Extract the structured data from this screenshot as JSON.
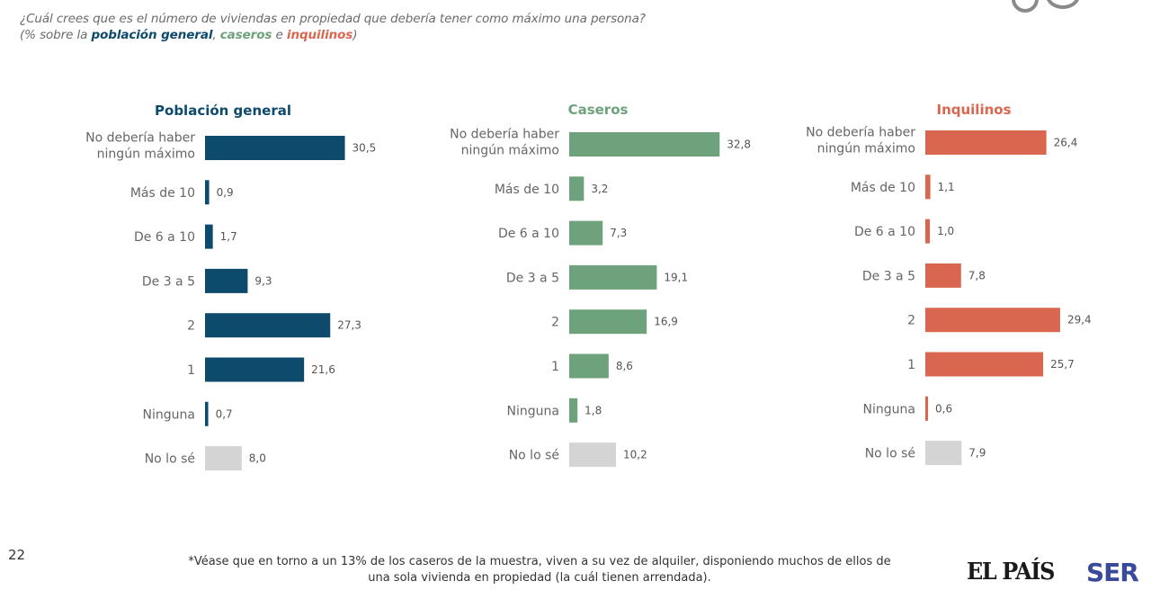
{
  "question": {
    "line1": "¿Cuál crees que es el número de viviendas en propiedad que debería tener como máximo una persona?",
    "line2_prefix": "(% sobre la ",
    "line2_gen": "población general",
    "line2_sep1": ", ",
    "line2_cas": "caseros",
    "line2_sep2": " e ",
    "line2_inq": "inquilinos",
    "line2_suffix": ")"
  },
  "colors": {
    "general": "#0d4a6b",
    "caseros": "#6ea27c",
    "inquilinos": "#d9664f",
    "no_lo_se": "#d4d4d4"
  },
  "chart_data": [
    {
      "type": "bar",
      "orientation": "horizontal",
      "title": "Población general",
      "color": "#0d4a6b",
      "categories": [
        "No debería haber ningún máximo",
        "Más de 10",
        "De 6 a 10",
        "De 3 a 5",
        "2",
        "1",
        "Ninguna",
        "No lo sé"
      ],
      "category_lines": [
        [
          "No debería haber",
          "ningún máximo"
        ],
        [
          "Más de 10"
        ],
        [
          "De 6 a 10"
        ],
        [
          "De 3 a 5"
        ],
        [
          "2"
        ],
        [
          "1"
        ],
        [
          "Ninguna"
        ],
        [
          "No lo sé"
        ]
      ],
      "values": [
        30.5,
        0.9,
        1.7,
        9.3,
        27.3,
        21.6,
        0.7,
        8.0
      ],
      "value_labels": [
        "30,5",
        "0,9",
        "1,7",
        "9,3",
        "27,3",
        "21,6",
        "0,7",
        "8,0"
      ],
      "xlabel": "",
      "ylabel": "",
      "unit": "%",
      "grid": false
    },
    {
      "type": "bar",
      "orientation": "horizontal",
      "title": "Caseros",
      "color": "#6ea27c",
      "categories": [
        "No debería haber ningún máximo",
        "Más de 10",
        "De 6 a 10",
        "De 3 a 5",
        "2",
        "1",
        "Ninguna",
        "No lo sé"
      ],
      "category_lines": [
        [
          "No debería haber",
          "ningún máximo"
        ],
        [
          "Más de 10"
        ],
        [
          "De 6 a 10"
        ],
        [
          "De 3 a 5"
        ],
        [
          "2"
        ],
        [
          "1"
        ],
        [
          "Ninguna"
        ],
        [
          "No lo sé"
        ]
      ],
      "values": [
        32.8,
        3.2,
        7.3,
        19.1,
        16.9,
        8.6,
        1.8,
        10.2
      ],
      "value_labels": [
        "32,8",
        "3,2",
        "7,3",
        "19,1",
        "16,9",
        "8,6",
        "1,8",
        "10,2"
      ],
      "xlabel": "",
      "ylabel": "",
      "unit": "%",
      "grid": false
    },
    {
      "type": "bar",
      "orientation": "horizontal",
      "title": "Inquilinos",
      "color": "#d9664f",
      "categories": [
        "No debería haber ningún máximo",
        "Más de 10",
        "De 6 a 10",
        "De 3 a 5",
        "2",
        "1",
        "Ninguna",
        "No lo sé"
      ],
      "category_lines": [
        [
          "No debería haber",
          "ningún máximo"
        ],
        [
          "Más de 10"
        ],
        [
          "De 6 a 10"
        ],
        [
          "De 3 a 5"
        ],
        [
          "2"
        ],
        [
          "1"
        ],
        [
          "Ninguna"
        ],
        [
          "No lo sé"
        ]
      ],
      "values": [
        26.4,
        1.1,
        1.0,
        7.8,
        29.4,
        25.7,
        0.6,
        7.9
      ],
      "value_labels": [
        "26,4",
        "1,1",
        "1,0",
        "7,8",
        "29,4",
        "25,7",
        "0,6",
        "7,9"
      ],
      "xlabel": "",
      "ylabel": "",
      "unit": "%",
      "grid": false
    }
  ],
  "footer": {
    "page_number": "22",
    "footnote_line1": "*Véase que en torno a un 13% de los caseros de la muestra, viven a su vez de alquiler, disponiendo muchos de ellos de",
    "footnote_line2": "una sola vivienda en propiedad (la cuál tienen arrendada).",
    "logo_pais": "EL PAÍS",
    "logo_ser": "SER"
  }
}
